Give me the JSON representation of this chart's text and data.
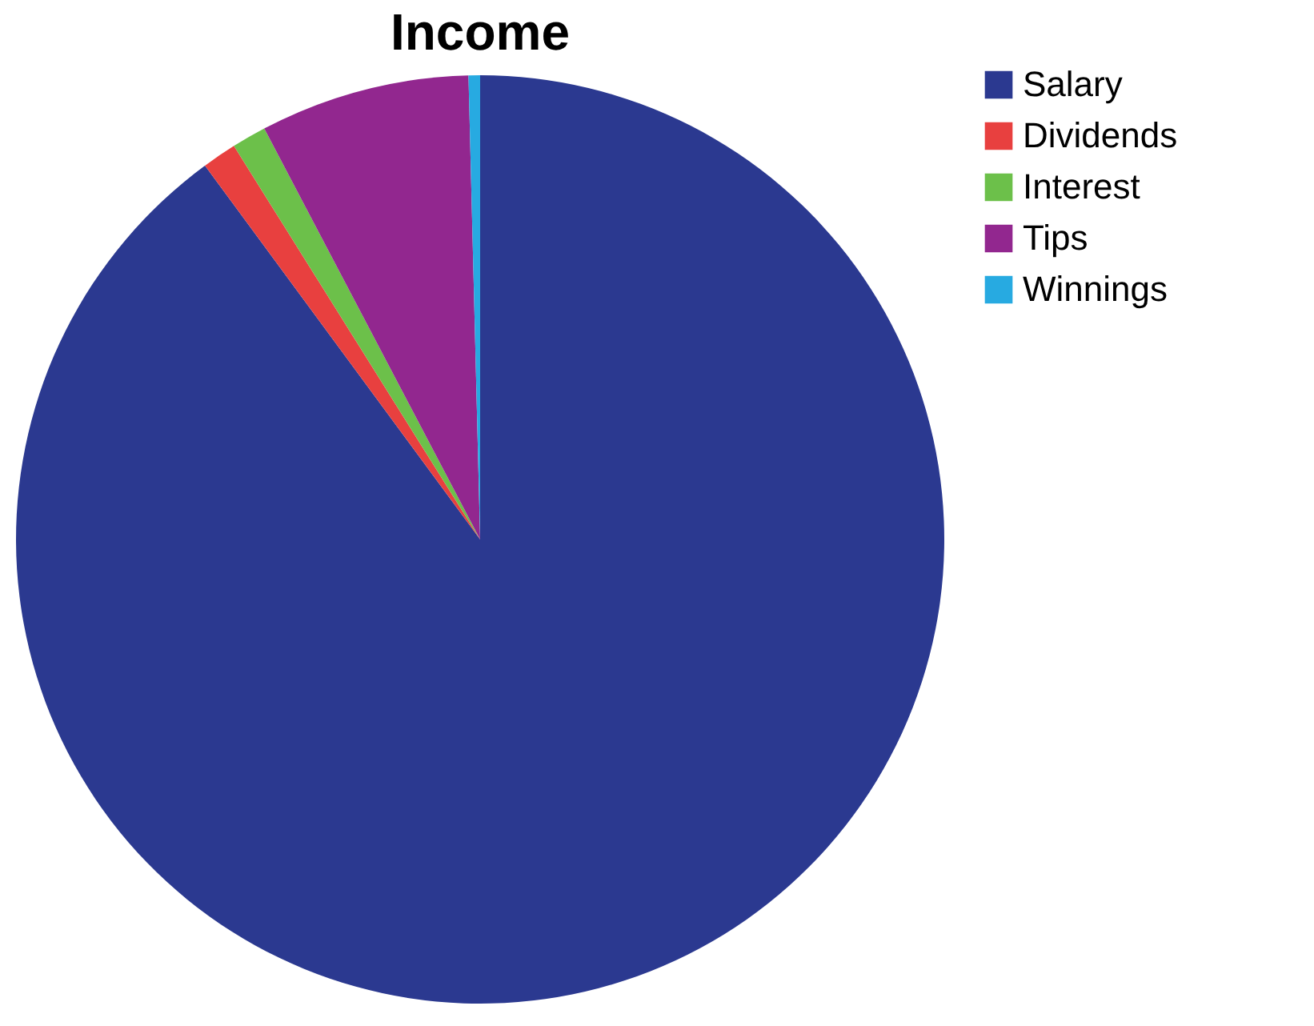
{
  "chart_data": {
    "type": "pie",
    "title": "Income",
    "categories": [
      "Salary",
      "Dividends",
      "Interest",
      "Tips",
      "Winnings"
    ],
    "values": [
      89.9,
      1.2,
      1.2,
      7.3,
      0.4
    ],
    "colors": [
      "#2b3990",
      "#e8403f",
      "#6cc04a",
      "#92278f",
      "#27aae1"
    ],
    "legend": "right"
  }
}
